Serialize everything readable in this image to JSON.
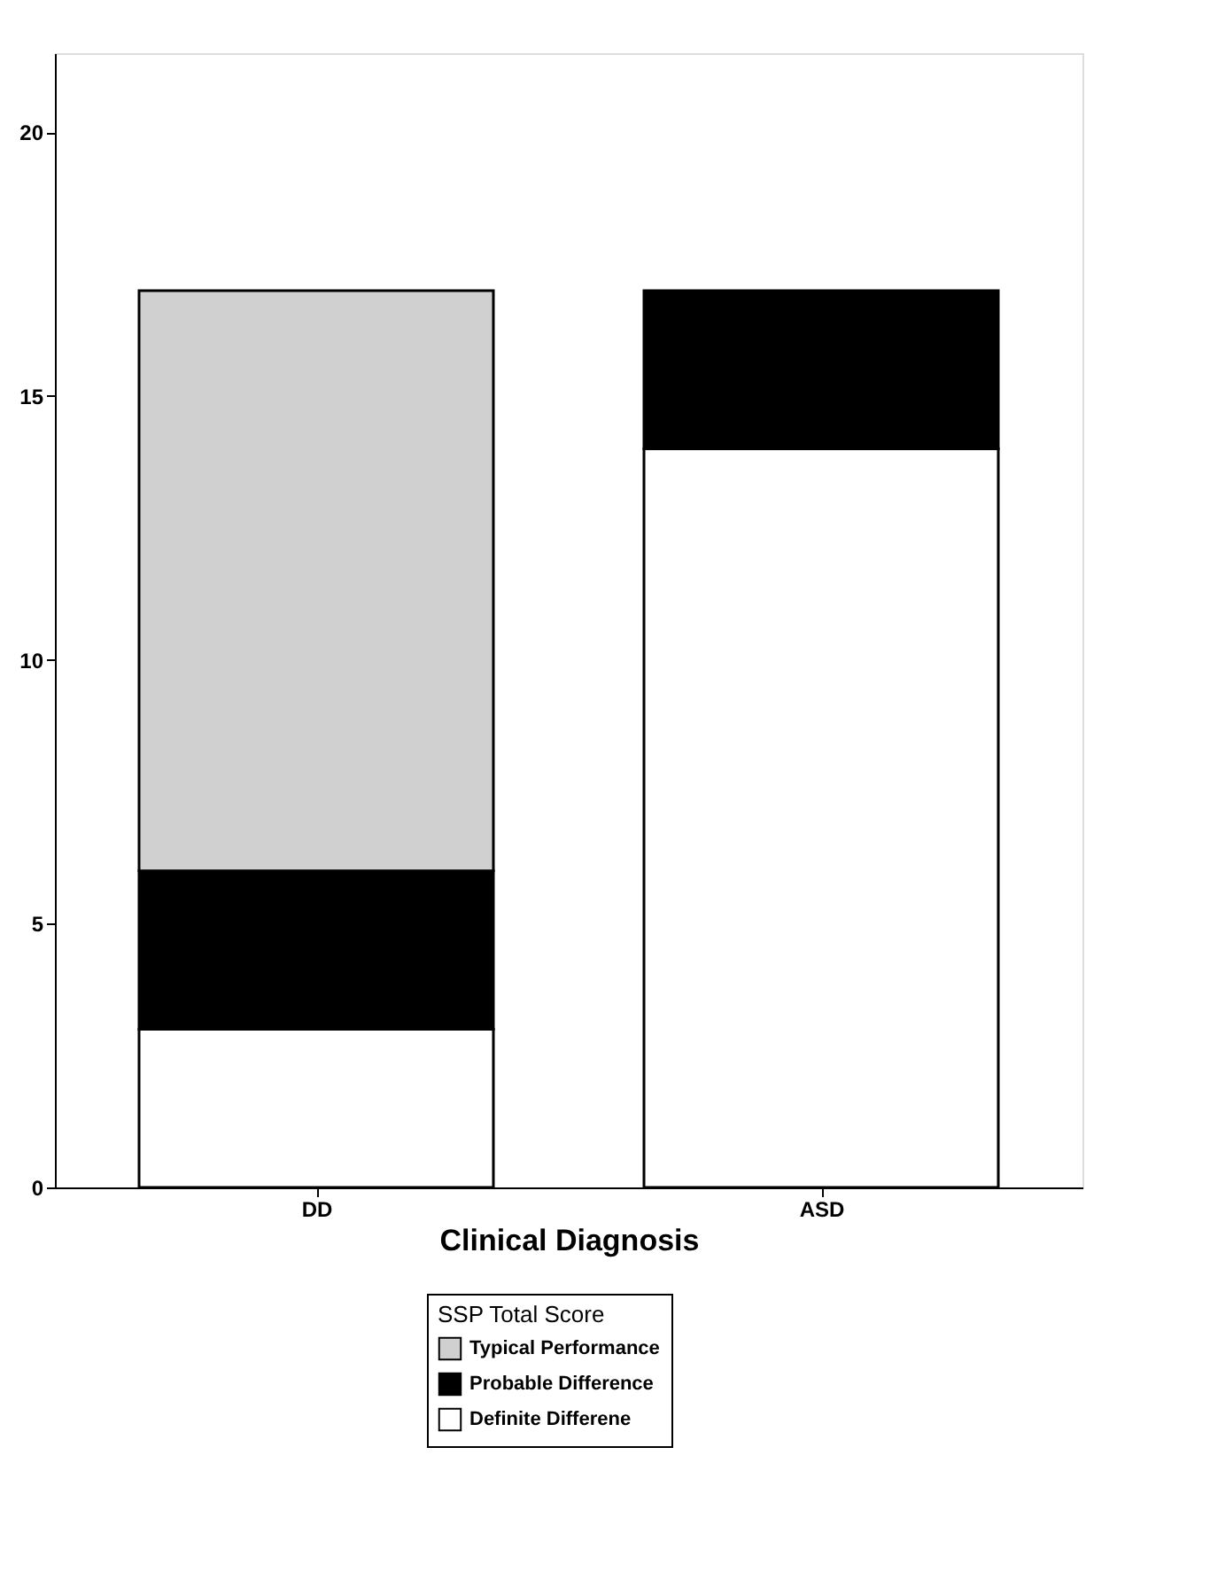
{
  "chart_data": {
    "type": "bar",
    "stacked": true,
    "xlabel": "Clinical Diagnosis",
    "legend_title": "SSP Total Score",
    "categories": [
      "DD",
      "ASD"
    ],
    "series": [
      {
        "name": "Definite Differene",
        "color": "#ffffff",
        "values": [
          3,
          14
        ]
      },
      {
        "name": "Probable Difference",
        "color": "#000000",
        "values": [
          3,
          3
        ]
      },
      {
        "name": "Typical Performance",
        "color": "#d0d0d0",
        "values": [
          11,
          null
        ]
      }
    ],
    "ylim": [
      0,
      21.5
    ],
    "yticks": [
      0,
      5,
      10,
      15,
      20
    ],
    "grid": false,
    "legend": "bottom"
  }
}
